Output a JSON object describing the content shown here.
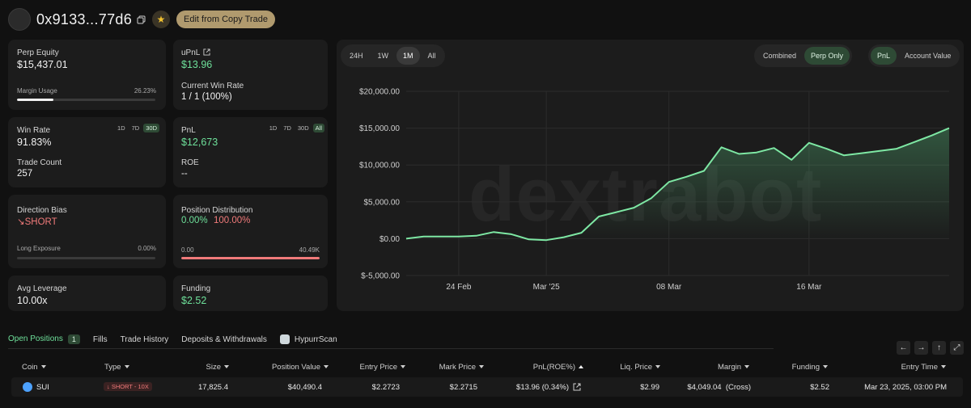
{
  "header": {
    "address": "0x9133...77d6",
    "edit_button": "Edit from Copy Trade"
  },
  "cards": {
    "perp_equity": {
      "label": "Perp Equity",
      "value": "$15,437.01",
      "margin_label": "Margin Usage",
      "margin_value": "26.23%",
      "margin_fraction": 0.2623
    },
    "upnl": {
      "label": "uPnL",
      "value": "$13.96",
      "winrate_label": "Current Win Rate",
      "winrate_value": "1 / 1 (100%)"
    },
    "win_rate": {
      "label": "Win Rate",
      "value": "91.83%",
      "periods": [
        "1D",
        "7D",
        "30D"
      ],
      "selected_period": "30D",
      "trade_count_label": "Trade Count",
      "trade_count_value": "257"
    },
    "pnl": {
      "label": "PnL",
      "value": "$12,673",
      "periods": [
        "1D",
        "7D",
        "30D",
        "All"
      ],
      "selected_period": "All",
      "roe_label": "ROE",
      "roe_value": "--"
    },
    "direction": {
      "label": "Direction Bias",
      "value": "↘SHORT",
      "exposure_label": "Long Exposure",
      "exposure_value": "0.00%",
      "exposure_fraction": 0.0
    },
    "position_dist": {
      "label": "Position Distribution",
      "long_pct": "0.00%",
      "short_pct": "100.00%",
      "long_value": "0.00",
      "short_value": "40.49K",
      "short_fraction": 1.0
    },
    "leverage": {
      "label": "Avg Leverage",
      "value": "10.00x"
    },
    "funding": {
      "label": "Funding",
      "value": "$2.52"
    }
  },
  "chart_controls": {
    "ranges": [
      "24H",
      "1W",
      "1M",
      "All"
    ],
    "selected_range": "1M",
    "modes": [
      "Combined",
      "Perp Only"
    ],
    "selected_mode": "Perp Only",
    "metrics": [
      "PnL",
      "Account Value"
    ],
    "selected_metric": "PnL",
    "watermark": "dextrabot"
  },
  "chart_data": {
    "type": "area",
    "y_ticks": [
      "$20,000.00",
      "$15,000.00",
      "$10,000.00",
      "$5,000.00",
      "$0.00",
      "$-5,000.00"
    ],
    "ylim": [
      -5000,
      20000
    ],
    "x_ticks": [
      "24 Feb",
      "Mar '25",
      "08 Mar",
      "16 Mar"
    ],
    "x_tick_dates": [
      "2025-02-24",
      "2025-03-01",
      "2025-03-08",
      "2025-03-16"
    ],
    "xlim": [
      "2025-02-21",
      "2025-03-24"
    ],
    "grid": true,
    "color": "#7ee8a4",
    "series": [
      {
        "x": [
          "2025-02-21",
          "2025-02-22",
          "2025-02-23",
          "2025-02-24",
          "2025-02-25",
          "2025-02-26",
          "2025-02-27",
          "2025-02-28",
          "2025-03-01",
          "2025-03-02",
          "2025-03-03",
          "2025-03-04",
          "2025-03-05",
          "2025-03-06",
          "2025-03-07",
          "2025-03-08",
          "2025-03-09",
          "2025-03-10",
          "2025-03-11",
          "2025-03-12",
          "2025-03-13",
          "2025-03-14",
          "2025-03-15",
          "2025-03-16",
          "2025-03-17",
          "2025-03-18",
          "2025-03-19",
          "2025-03-20",
          "2025-03-21",
          "2025-03-22",
          "2025-03-23",
          "2025-03-24"
        ],
        "values": [
          0,
          300,
          300,
          300,
          400,
          900,
          600,
          -100,
          -200,
          200,
          800,
          3000,
          3600,
          4200,
          5500,
          7700,
          8400,
          9200,
          12400,
          11500,
          11700,
          12300,
          10700,
          13000,
          12200,
          11300,
          11600,
          11900,
          12200,
          13100,
          14000,
          15000
        ]
      }
    ]
  },
  "tabs": {
    "items": [
      "Open Positions",
      "Fills",
      "Trade History",
      "Deposits & Withdrawals",
      "HypurrScan"
    ],
    "open_count": "1"
  },
  "table": {
    "columns": [
      "Coin",
      "Type",
      "Size",
      "Position Value",
      "Entry Price",
      "Mark Price",
      "PnL(ROE%)",
      "Liq. Price",
      "Margin",
      "Funding",
      "Entry Time"
    ],
    "row": {
      "coin": "SUI",
      "type": "↓ SHORT - 10X",
      "size": "17,825.4",
      "position_value": "$40,490.4",
      "entry_price": "$2.2723",
      "mark_price": "$2.2715",
      "pnl": "$13.96 (0.34%)",
      "liq_price": "$2.99",
      "margin": "$4,049.04  (Cross)",
      "funding": "$2.52",
      "entry_time": "Mar 23, 2025, 03:00 PM"
    }
  },
  "colors": {
    "accent_green": "#6ee09a",
    "short_red": "#f07a7a",
    "gold": "#b09a6e"
  },
  "icons": [
    "copy-icon",
    "star-icon",
    "external-link-icon",
    "arrow-left-icon",
    "arrow-right-icon",
    "arrow-up-icon",
    "expand-icon",
    "sui-coin-icon",
    "hypurrscan-icon"
  ]
}
